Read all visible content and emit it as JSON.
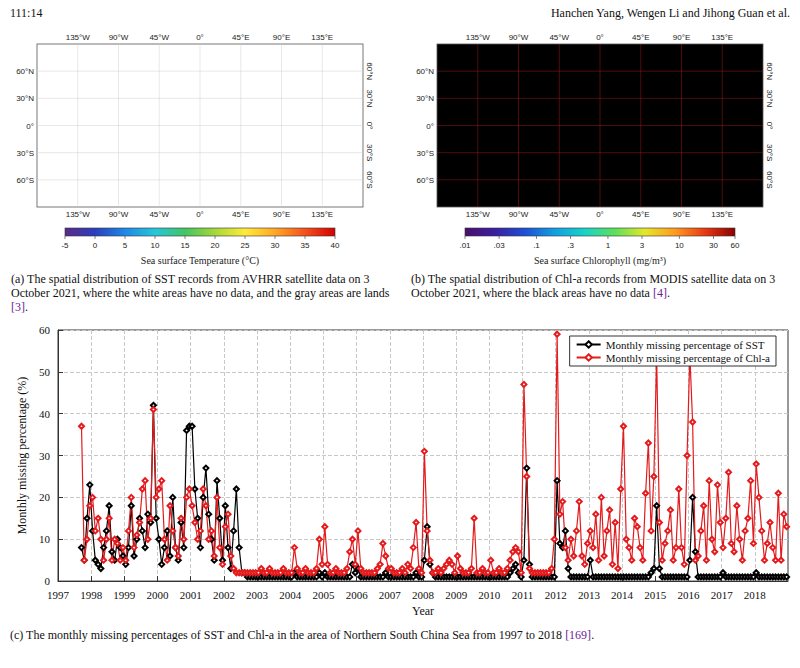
{
  "header": {
    "page": "111:14",
    "authors": "Hanchen Yang, Wengen Li and Jihong Guan et al."
  },
  "panels": [
    {
      "xlim": [
        -180,
        180
      ],
      "ylim": [
        -90,
        90
      ],
      "xticks": [
        {
          "value": -135,
          "label": "135°W"
        },
        {
          "value": -90,
          "label": "90°W"
        },
        {
          "value": -45,
          "label": "45°W"
        },
        {
          "value": 0,
          "label": "0°"
        },
        {
          "value": 45,
          "label": "45°E"
        },
        {
          "value": 90,
          "label": "90°E"
        },
        {
          "value": 135,
          "label": "135°E"
        }
      ],
      "yticks": [
        {
          "value": 60,
          "label": "60°N"
        },
        {
          "value": 30,
          "label": "30°N"
        },
        {
          "value": 0,
          "label": "0°"
        },
        {
          "value": -30,
          "label": "30°S"
        },
        {
          "value": -60,
          "label": "60°S"
        }
      ],
      "colorbar": {
        "label": "Sea surface Temperature (°C)",
        "range": [
          -5,
          40
        ],
        "ticks": [
          -5,
          0,
          5,
          10,
          15,
          20,
          25,
          30,
          35,
          40
        ]
      },
      "caption": "(a) The spatial distribution of SST records from AVHRR satellite data on 3 October 2021, where the white areas have no data, and the gray areas are lands [3]."
    },
    {
      "xlim": [
        -180,
        180
      ],
      "ylim": [
        -90,
        90
      ],
      "xticks": [
        {
          "value": -135,
          "label": "135°W"
        },
        {
          "value": -90,
          "label": "90°W"
        },
        {
          "value": -45,
          "label": "45°W"
        },
        {
          "value": 0,
          "label": "0°"
        },
        {
          "value": 45,
          "label": "45°E"
        },
        {
          "value": 90,
          "label": "90°E"
        },
        {
          "value": 135,
          "label": "135°E"
        }
      ],
      "yticks": [
        {
          "value": 60,
          "label": "60°N"
        },
        {
          "value": 30,
          "label": "30°N"
        },
        {
          "value": 0,
          "label": "0°"
        },
        {
          "value": -30,
          "label": "30°S"
        },
        {
          "value": -60,
          "label": "60°S"
        }
      ],
      "colorbar": {
        "label": "Sea surface Chlorophyll (mg/m³)",
        "range": [
          0.01,
          60
        ],
        "log": true,
        "ticks": [
          {
            "value": 0.01,
            "label": ".01"
          },
          {
            "value": 0.03,
            "label": ".03"
          },
          {
            "value": 0.1,
            "label": ".1"
          },
          {
            "value": 0.3,
            "label": ".3"
          },
          1,
          3,
          10,
          30,
          60
        ]
      },
      "caption": "(b) The spatial distribution of Chl-a records from MODIS satellite data on 3 October 2021, where the black areas have no data [4]."
    }
  ],
  "chart_data": {
    "type": "line",
    "xlabel": "Year",
    "ylabel": "Monthly missing percentage (%)",
    "caption": "(c) The monthly missing percentages of SST and Chl-a in the area of Northern South China Sea from 1997 to 2018 [169].",
    "xlim": [
      1997,
      2019
    ],
    "xticks": [
      1997,
      1998,
      1999,
      2000,
      2001,
      2002,
      2003,
      2004,
      2005,
      2006,
      2007,
      2008,
      2009,
      2010,
      2011,
      2012,
      2013,
      2014,
      2015,
      2016,
      2017,
      2018
    ],
    "ylim": [
      0,
      60
    ],
    "yticks": [
      0,
      10,
      20,
      30,
      40,
      50,
      60
    ],
    "grid": true,
    "legend": "upper right",
    "x": [
      "1997-09",
      "1997-10",
      "1997-11",
      "1997-12",
      "1998-01",
      "1998-02",
      "1998-03",
      "1998-04",
      "1998-05",
      "1998-06",
      "1998-07",
      "1998-08",
      "1998-09",
      "1998-10",
      "1998-11",
      "1998-12",
      "1999-01",
      "1999-02",
      "1999-03",
      "1999-04",
      "1999-05",
      "1999-06",
      "1999-07",
      "1999-08",
      "1999-09",
      "1999-10",
      "1999-11",
      "1999-12",
      "2000-01",
      "2000-02",
      "2000-03",
      "2000-04",
      "2000-05",
      "2000-06",
      "2000-07",
      "2000-08",
      "2000-09",
      "2000-10",
      "2000-11",
      "2000-12",
      "2001-01",
      "2001-02",
      "2001-03",
      "2001-04",
      "2001-05",
      "2001-06",
      "2001-07",
      "2001-08",
      "2001-09",
      "2001-10",
      "2001-11",
      "2001-12",
      "2002-01",
      "2002-02",
      "2002-03",
      "2002-04",
      "2002-05",
      "2002-06",
      "2002-07",
      "2002-08",
      "2002-09",
      "2002-10",
      "2002-11",
      "2002-12",
      "2003-01",
      "2003-02",
      "2003-03",
      "2003-04",
      "2003-05",
      "2003-06",
      "2003-07",
      "2003-08",
      "2003-09",
      "2003-10",
      "2003-11",
      "2003-12",
      "2004-01",
      "2004-02",
      "2004-03",
      "2004-04",
      "2004-05",
      "2004-06",
      "2004-07",
      "2004-08",
      "2004-09",
      "2004-10",
      "2004-11",
      "2004-12",
      "2005-01",
      "2005-02",
      "2005-03",
      "2005-04",
      "2005-05",
      "2005-06",
      "2005-07",
      "2005-08",
      "2005-09",
      "2005-10",
      "2005-11",
      "2005-12",
      "2006-01",
      "2006-02",
      "2006-03",
      "2006-04",
      "2006-05",
      "2006-06",
      "2006-07",
      "2006-08",
      "2006-09",
      "2006-10",
      "2006-11",
      "2006-12",
      "2007-01",
      "2007-02",
      "2007-03",
      "2007-04",
      "2007-05",
      "2007-06",
      "2007-07",
      "2007-08",
      "2007-09",
      "2007-10",
      "2007-11",
      "2007-12",
      "2008-01",
      "2008-02",
      "2008-03",
      "2008-04",
      "2008-05",
      "2008-06",
      "2008-07",
      "2008-08",
      "2008-09",
      "2008-10",
      "2008-11",
      "2008-12",
      "2009-01",
      "2009-02",
      "2009-03",
      "2009-04",
      "2009-05",
      "2009-06",
      "2009-07",
      "2009-08",
      "2009-09",
      "2009-10",
      "2009-11",
      "2009-12",
      "2010-01",
      "2010-02",
      "2010-03",
      "2010-04",
      "2010-05",
      "2010-06",
      "2010-07",
      "2010-08",
      "2010-09",
      "2010-10",
      "2010-11",
      "2010-12",
      "2011-01",
      "2011-02",
      "2011-03",
      "2011-04",
      "2011-05",
      "2011-06",
      "2011-07",
      "2011-08",
      "2011-09",
      "2011-10",
      "2011-11",
      "2011-12",
      "2012-01",
      "2012-02",
      "2012-03",
      "2012-04",
      "2012-05",
      "2012-06",
      "2012-07",
      "2012-08",
      "2012-09",
      "2012-10",
      "2012-11",
      "2012-12",
      "2013-01",
      "2013-02",
      "2013-03",
      "2013-04",
      "2013-05",
      "2013-06",
      "2013-07",
      "2013-08",
      "2013-09",
      "2013-10",
      "2013-11",
      "2013-12",
      "2014-01",
      "2014-02",
      "2014-03",
      "2014-04",
      "2014-05",
      "2014-06",
      "2014-07",
      "2014-08",
      "2014-09",
      "2014-10",
      "2014-11",
      "2014-12",
      "2015-01",
      "2015-02",
      "2015-03",
      "2015-04",
      "2015-05",
      "2015-06",
      "2015-07",
      "2015-08",
      "2015-09",
      "2015-10",
      "2015-11",
      "2015-12",
      "2016-01",
      "2016-02",
      "2016-03",
      "2016-04",
      "2016-05",
      "2016-06",
      "2016-07",
      "2016-08",
      "2016-09",
      "2016-10",
      "2016-11",
      "2016-12",
      "2017-01",
      "2017-02",
      "2017-03",
      "2017-04",
      "2017-05",
      "2017-06",
      "2017-07",
      "2017-08",
      "2017-09",
      "2017-10",
      "2017-11",
      "2017-12",
      "2018-01",
      "2018-02",
      "2018-03",
      "2018-04",
      "2018-05",
      "2018-06",
      "2018-07",
      "2018-08",
      "2018-09",
      "2018-10",
      "2018-11",
      "2018-12"
    ],
    "series": [
      {
        "name": "Monthly missing percentage of SST",
        "color": "#000000",
        "marker": "diamond",
        "line_style": "solid",
        "values": [
          8,
          5,
          15,
          23,
          12,
          5,
          4,
          3,
          8,
          12,
          18,
          7,
          5,
          10,
          8,
          6,
          4,
          8,
          18,
          6,
          10,
          15,
          12,
          8,
          16,
          14,
          42,
          15,
          10,
          4,
          8,
          12,
          6,
          20,
          8,
          5,
          14,
          8,
          36,
          37,
          37,
          22,
          15,
          8,
          20,
          27,
          16,
          10,
          5,
          24,
          15,
          5,
          18,
          8,
          3,
          12,
          22,
          8,
          2,
          2,
          1,
          1,
          1,
          1,
          1,
          1,
          1,
          1,
          1,
          1,
          1,
          1,
          1,
          1,
          1,
          1,
          1,
          2,
          1,
          1,
          1,
          1,
          1,
          1,
          1,
          1,
          2,
          1,
          2,
          1,
          1,
          1,
          1,
          1,
          1,
          1,
          1,
          1,
          4,
          2,
          3,
          1,
          1,
          1,
          1,
          1,
          1,
          1,
          1,
          1,
          2,
          1,
          1,
          1,
          1,
          1,
          1,
          1,
          1,
          1,
          1,
          2,
          1,
          1,
          5,
          13,
          4,
          2,
          1,
          1,
          1,
          1,
          1,
          1,
          1,
          1,
          1,
          1,
          1,
          1,
          1,
          1,
          1,
          1,
          1,
          1,
          1,
          1,
          1,
          1,
          1,
          1,
          1,
          1,
          1,
          2,
          3,
          4,
          2,
          1,
          5,
          27,
          4,
          1,
          1,
          1,
          1,
          1,
          1,
          1,
          1,
          1,
          24,
          9,
          8,
          12,
          3,
          1,
          1,
          1,
          1,
          1,
          1,
          1,
          5,
          1,
          1,
          1,
          1,
          1,
          1,
          1,
          1,
          1,
          1,
          1,
          1,
          1,
          1,
          1,
          1,
          1,
          1,
          1,
          1,
          1,
          2,
          3,
          18,
          3,
          1,
          1,
          1,
          1,
          1,
          1,
          1,
          1,
          1,
          1,
          5,
          20,
          7,
          1,
          1,
          1,
          1,
          1,
          1,
          1,
          1,
          1,
          2,
          1,
          1,
          1,
          1,
          1,
          1,
          1,
          1,
          1,
          1,
          1,
          2,
          1,
          1,
          1,
          1,
          1,
          1,
          1,
          1,
          1,
          1,
          1
        ]
      },
      {
        "name": "Monthly missing percentage of Chl-a",
        "color": "#e41a1c",
        "marker": "diamond",
        "line_style": "solid",
        "values": [
          37,
          5,
          10,
          18,
          20,
          12,
          15,
          10,
          5,
          10,
          15,
          5,
          10,
          9,
          5,
          8,
          5,
          12,
          20,
          8,
          11,
          14,
          22,
          24,
          10,
          15,
          41,
          20,
          22,
          24,
          10,
          5,
          18,
          12,
          8,
          6,
          15,
          10,
          20,
          22,
          18,
          14,
          10,
          12,
          22,
          18,
          10,
          12,
          6,
          20,
          8,
          4,
          13,
          16,
          6,
          3,
          2,
          2,
          2,
          2,
          2,
          2,
          2,
          2,
          2,
          3,
          2,
          2,
          3,
          2,
          2,
          2,
          2,
          3,
          2,
          2,
          2,
          8,
          3,
          2,
          2,
          3,
          2,
          2,
          2,
          3,
          10,
          4,
          13,
          4,
          2,
          2,
          3,
          2,
          2,
          2,
          3,
          7,
          10,
          4,
          12,
          3,
          2,
          2,
          2,
          2,
          2,
          3,
          4,
          9,
          6,
          3,
          3,
          2,
          2,
          2,
          3,
          2,
          4,
          3,
          8,
          14,
          3,
          2,
          31,
          12,
          5,
          2,
          2,
          3,
          2,
          3,
          4,
          5,
          4,
          2,
          6,
          3,
          2,
          2,
          2,
          3,
          15,
          2,
          2,
          3,
          2,
          2,
          5,
          2,
          2,
          3,
          2,
          2,
          3,
          5,
          7,
          8,
          7,
          2,
          47,
          25,
          3,
          2,
          2,
          2,
          2,
          2,
          2,
          2,
          3,
          10,
          59,
          16,
          19,
          8,
          5,
          10,
          6,
          12,
          19,
          6,
          4,
          9,
          12,
          8,
          16,
          5,
          20,
          6,
          12,
          17,
          4,
          14,
          3,
          22,
          37,
          10,
          8,
          5,
          15,
          13,
          8,
          5,
          21,
          33,
          12,
          25,
          54,
          14,
          5,
          9,
          12,
          17,
          5,
          8,
          22,
          8,
          4,
          30,
          54,
          38,
          5,
          6,
          12,
          18,
          5,
          24,
          10,
          7,
          23,
          14,
          8,
          15,
          26,
          9,
          7,
          18,
          10,
          5,
          12,
          15,
          24,
          9,
          28,
          20,
          12,
          5,
          9,
          14,
          8,
          5,
          21,
          5,
          16,
          13
        ]
      }
    ]
  }
}
